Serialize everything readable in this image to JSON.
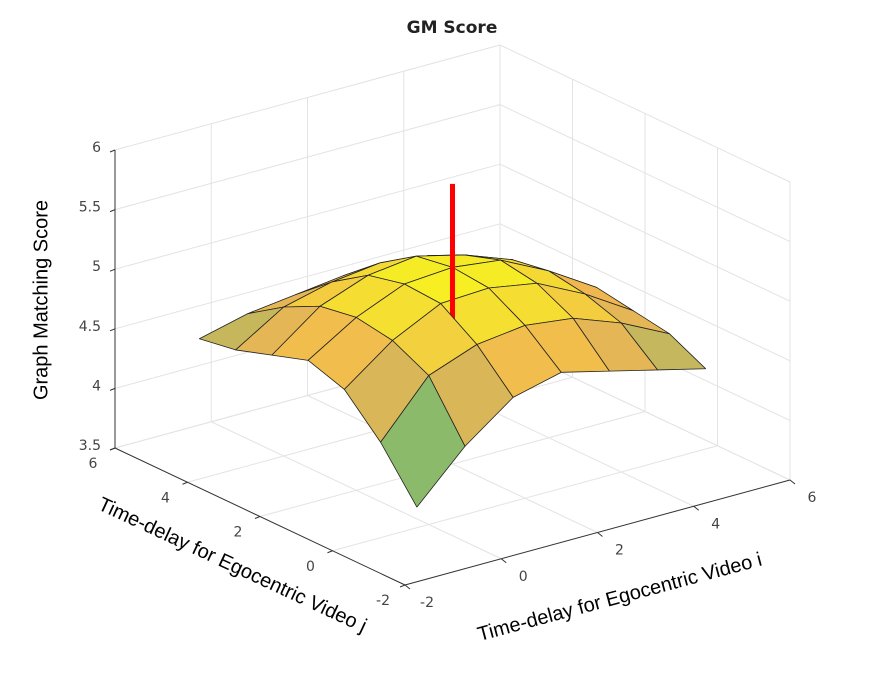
{
  "chart_data": {
    "type": "surface",
    "title": "GM Score",
    "xlabel": "Time-delay for Egocentric Video i",
    "ylabel": "Time-delay for Egocentric Video j",
    "zlabel": "Graph Matching Score",
    "x": [
      -1,
      0,
      1,
      2,
      3,
      4,
      5
    ],
    "y": [
      -1,
      0,
      1,
      2,
      3,
      4,
      5
    ],
    "z": [
      [
        3.9,
        4.3,
        4.6,
        4.7,
        4.6,
        4.5,
        4.4
      ],
      [
        4.3,
        4.75,
        4.9,
        4.95,
        4.9,
        4.75,
        4.55
      ],
      [
        4.6,
        4.9,
        5.1,
        5.12,
        5.05,
        4.85,
        4.6
      ],
      [
        4.7,
        4.95,
        5.12,
        5.15,
        5.1,
        4.9,
        4.65
      ],
      [
        4.6,
        4.9,
        5.05,
        5.1,
        5.0,
        4.85,
        4.55
      ],
      [
        4.5,
        4.75,
        4.85,
        4.9,
        4.85,
        4.7,
        4.5
      ],
      [
        4.45,
        4.55,
        4.6,
        4.65,
        4.6,
        4.5,
        4.45
      ]
    ],
    "colormap": [
      "#2db7a5",
      "#8dba6a",
      "#f0b552",
      "#f7f320"
    ],
    "xlim": [
      -2,
      6
    ],
    "ylim": [
      -2,
      6
    ],
    "zlim": [
      3.5,
      6
    ],
    "xticks": [
      -2,
      0,
      2,
      4,
      6
    ],
    "yticks": [
      -2,
      0,
      2,
      4,
      6
    ],
    "zticks": [
      3.5,
      4,
      4.5,
      5,
      5.5,
      6
    ],
    "grid": true,
    "marker": {
      "x": 2,
      "y": 2,
      "z": [
        3.97,
        5.85
      ],
      "color": "#ff0000"
    }
  }
}
